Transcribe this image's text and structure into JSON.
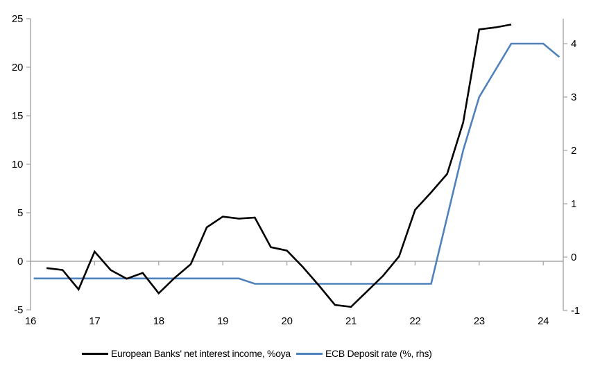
{
  "chart_data": {
    "type": "line",
    "title": "",
    "grid": false,
    "legend_position": "bottom",
    "axis_color": "#a6a6a6",
    "zero_line_color": "#a6a6a6",
    "x_axis": {
      "ticks": [
        16,
        17,
        18,
        19,
        20,
        21,
        22,
        23,
        24
      ],
      "range": [
        16,
        24.31
      ]
    },
    "y_axis_left": {
      "ticks": [
        -5,
        0,
        5,
        10,
        15,
        20,
        25
      ],
      "range": [
        -5,
        25
      ]
    },
    "y_axis_right": {
      "ticks": [
        -1,
        0,
        1,
        2,
        3,
        4
      ],
      "range": [
        -1,
        4.47
      ]
    },
    "series": [
      {
        "name": "European Banks' net interest income, %oya",
        "axis": "left",
        "color": "#000000",
        "x": [
          16.25,
          16.5,
          16.75,
          17.0,
          17.25,
          17.5,
          17.75,
          18.0,
          18.25,
          18.5,
          18.75,
          19.0,
          19.25,
          19.5,
          19.75,
          20.0,
          20.25,
          20.5,
          20.75,
          21.0,
          21.25,
          21.5,
          21.75,
          22.0,
          22.25,
          22.5,
          22.75,
          23.0,
          23.25,
          23.5
        ],
        "values": [
          -0.7,
          -0.9,
          -2.9,
          1.0,
          -0.9,
          -1.8,
          -1.2,
          -3.3,
          -1.7,
          -0.3,
          3.5,
          4.6,
          4.4,
          4.5,
          1.45,
          1.1,
          -0.6,
          -2.5,
          -4.5,
          -4.7,
          -3.1,
          -1.5,
          0.5,
          5.3,
          7.1,
          9.0,
          14.3,
          23.9,
          24.1,
          24.4
        ]
      },
      {
        "name": "ECB Deposit rate (%, rhs)",
        "axis": "right",
        "color": "#4f81bd",
        "x": [
          16.05,
          16.25,
          16.5,
          16.75,
          17.0,
          17.25,
          17.5,
          17.75,
          18.0,
          18.25,
          18.5,
          18.75,
          19.0,
          19.25,
          19.5,
          19.75,
          20.0,
          20.25,
          20.5,
          20.75,
          21.0,
          21.25,
          21.5,
          21.75,
          22.0,
          22.25,
          22.5,
          22.75,
          23.0,
          23.25,
          23.5,
          23.75,
          24.0,
          24.25
        ],
        "values": [
          -0.4,
          -0.4,
          -0.4,
          -0.4,
          -0.4,
          -0.4,
          -0.4,
          -0.4,
          -0.4,
          -0.4,
          -0.4,
          -0.4,
          -0.4,
          -0.4,
          -0.5,
          -0.5,
          -0.5,
          -0.5,
          -0.5,
          -0.5,
          -0.5,
          -0.5,
          -0.5,
          -0.5,
          -0.5,
          -0.5,
          0.75,
          2.0,
          3.0,
          3.5,
          4.0,
          4.0,
          4.0,
          3.75
        ]
      }
    ]
  },
  "legend": {
    "items": [
      {
        "label": "European Banks' net interest income, %oya",
        "swatch": "black-line-swatch"
      },
      {
        "label": "ECB Deposit rate (%, rhs)",
        "swatch": "blue-line-swatch"
      }
    ]
  }
}
